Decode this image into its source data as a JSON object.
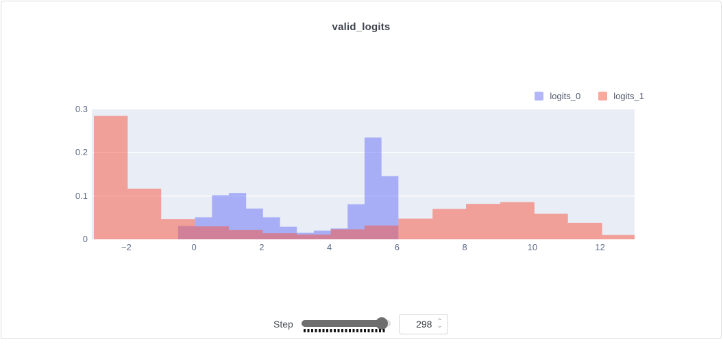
{
  "card": {
    "title": "valid_logits"
  },
  "controls": {
    "step_label": "Step",
    "step_value": "298",
    "spinner_up": "⌃",
    "spinner_down": "⌄"
  },
  "chart_data": {
    "type": "bar",
    "subtype": "overlaid-step-histogram",
    "title": "valid_logits",
    "xlabel": "",
    "ylabel": "",
    "xlim": [
      -3.02,
      13.02
    ],
    "ylim": [
      0,
      0.3
    ],
    "x_ticks": [
      -2,
      0,
      2,
      4,
      6,
      8,
      10,
      12
    ],
    "y_ticks": [
      0,
      0.1,
      0.2,
      0.3
    ],
    "gridlines_y": [
      0.1,
      0.2
    ],
    "grid": "on",
    "legend_position": "top-right",
    "plot_background": "#e9edf6",
    "gridline_color": "#ffffff",
    "series": [
      {
        "name": "logits_0",
        "color": "#6770f5",
        "opacity": 0.5,
        "steps": [
          [
            -0.47,
            0.03,
            0.031
          ],
          [
            0.03,
            0.53,
            0.051
          ],
          [
            0.53,
            1.03,
            0.102
          ],
          [
            1.03,
            1.54,
            0.107
          ],
          [
            1.54,
            2.04,
            0.071
          ],
          [
            2.04,
            2.54,
            0.051
          ],
          [
            2.54,
            3.04,
            0.029
          ],
          [
            3.04,
            3.54,
            0.015
          ],
          [
            3.54,
            4.04,
            0.02
          ],
          [
            4.04,
            4.54,
            0.025
          ],
          [
            4.54,
            5.04,
            0.081
          ],
          [
            5.04,
            5.54,
            0.235
          ],
          [
            5.54,
            6.04,
            0.146
          ]
        ]
      },
      {
        "name": "logits_1",
        "color": "#f7533b",
        "opacity": 0.5,
        "steps": [
          [
            -2.96,
            -1.96,
            0.285
          ],
          [
            -1.96,
            -0.97,
            0.117
          ],
          [
            -0.97,
            0.03,
            0.047
          ],
          [
            0.03,
            1.03,
            0.03
          ],
          [
            1.03,
            2.03,
            0.022
          ],
          [
            2.03,
            3.04,
            0.014
          ],
          [
            3.04,
            4.04,
            0.011
          ],
          [
            4.04,
            5.04,
            0.023
          ],
          [
            5.04,
            6.04,
            0.032
          ],
          [
            6.04,
            7.05,
            0.048
          ],
          [
            7.05,
            8.04,
            0.07
          ],
          [
            8.04,
            9.05,
            0.082
          ],
          [
            9.05,
            10.06,
            0.086
          ],
          [
            10.06,
            11.05,
            0.059
          ],
          [
            11.05,
            12.06,
            0.038
          ],
          [
            12.06,
            13.02,
            0.01
          ]
        ]
      }
    ]
  }
}
